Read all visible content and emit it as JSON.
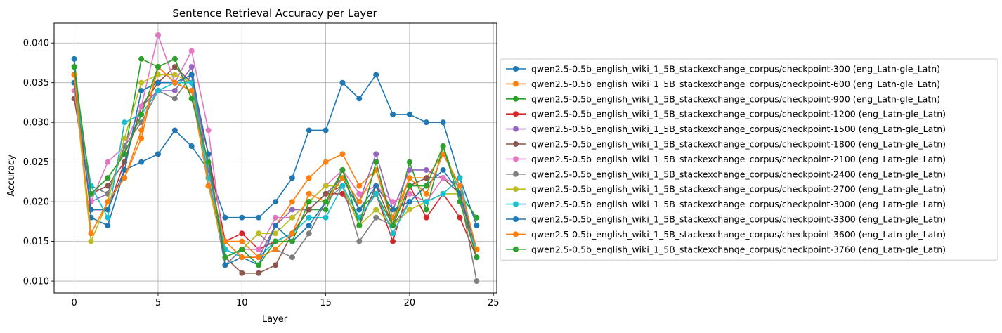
{
  "chart_data": {
    "type": "line",
    "title": "Sentence Retrieval Accuracy per Layer",
    "xlabel": "Layer",
    "ylabel": "Accuracy",
    "xlim": [
      -1.2,
      25.2
    ],
    "ylim": [
      0.0085,
      0.0425
    ],
    "xticks": [
      0,
      5,
      10,
      15,
      20,
      25
    ],
    "yticks": [
      0.01,
      0.015,
      0.02,
      0.025,
      0.03,
      0.035,
      0.04
    ],
    "xtick_labels": [
      "0",
      "5",
      "10",
      "15",
      "20",
      "25"
    ],
    "ytick_labels": [
      "0.010",
      "0.015",
      "0.020",
      "0.025",
      "0.030",
      "0.035",
      "0.040"
    ],
    "grid": true,
    "legend_position": "outside-right",
    "x": [
      0,
      1,
      2,
      3,
      4,
      5,
      6,
      7,
      8,
      9,
      10,
      11,
      12,
      13,
      14,
      15,
      16,
      17,
      18,
      19,
      20,
      21,
      22,
      23,
      24
    ],
    "series": [
      {
        "name": "qwen2.5-0.5b_english_wiki_1_5B_stackexchange_corpus/checkpoint-300 (eng_Latn-gle_Latn)",
        "color": "#1f77b4",
        "values": [
          0.038,
          0.018,
          0.017,
          0.024,
          0.025,
          0.026,
          0.029,
          0.027,
          0.024,
          0.018,
          0.018,
          0.018,
          0.02,
          0.023,
          0.029,
          0.029,
          0.035,
          0.033,
          0.036,
          0.031,
          0.031,
          0.03,
          0.03,
          0.023,
          0.017
        ]
      },
      {
        "name": "qwen2.5-0.5b_english_wiki_1_5B_stackexchange_corpus/checkpoint-600 (eng_Latn-gle_Latn)",
        "color": "#ff7f0e",
        "values": [
          0.036,
          0.016,
          0.02,
          0.023,
          0.028,
          0.037,
          0.035,
          0.034,
          0.022,
          0.015,
          0.015,
          0.013,
          0.017,
          0.02,
          0.023,
          0.025,
          0.026,
          0.022,
          0.024,
          0.018,
          0.023,
          0.023,
          0.026,
          0.022,
          0.014
        ]
      },
      {
        "name": "qwen2.5-0.5b_english_wiki_1_5B_stackexchange_corpus/checkpoint-900 (eng_Latn-gle_Latn)",
        "color": "#2ca02c",
        "values": [
          0.037,
          0.021,
          0.023,
          0.026,
          0.038,
          0.037,
          0.038,
          0.033,
          0.025,
          0.013,
          0.014,
          0.014,
          0.015,
          0.016,
          0.019,
          0.019,
          0.024,
          0.019,
          0.021,
          0.017,
          0.025,
          0.019,
          0.027,
          0.021,
          0.018
        ]
      },
      {
        "name": "qwen2.5-0.5b_english_wiki_1_5B_stackexchange_corpus/checkpoint-1200 (eng_Latn-gle_Latn)",
        "color": "#d62728",
        "values": [
          0.036,
          0.019,
          0.019,
          0.025,
          0.032,
          0.035,
          0.035,
          0.035,
          0.026,
          0.015,
          0.016,
          0.014,
          0.015,
          0.016,
          0.019,
          0.021,
          0.021,
          0.018,
          0.021,
          0.015,
          0.022,
          0.018,
          0.021,
          0.018,
          0.013
        ]
      },
      {
        "name": "qwen2.5-0.5b_english_wiki_1_5B_stackexchange_corpus/checkpoint-1500 (eng_Latn-gle_Latn)",
        "color": "#9467bd",
        "values": [
          0.033,
          0.02,
          0.021,
          0.027,
          0.032,
          0.034,
          0.034,
          0.037,
          0.024,
          0.014,
          0.013,
          0.013,
          0.017,
          0.019,
          0.019,
          0.021,
          0.023,
          0.02,
          0.026,
          0.019,
          0.024,
          0.024,
          0.023,
          0.021,
          0.013
        ]
      },
      {
        "name": "qwen2.5-0.5b_english_wiki_1_5B_stackexchange_corpus/checkpoint-1800 (eng_Latn-gle_Latn)",
        "color": "#8c564b",
        "values": [
          0.033,
          0.021,
          0.022,
          0.025,
          0.032,
          0.035,
          0.037,
          0.035,
          0.023,
          0.013,
          0.011,
          0.011,
          0.012,
          0.016,
          0.019,
          0.021,
          0.022,
          0.017,
          0.022,
          0.017,
          0.022,
          0.023,
          0.023,
          0.021,
          0.013
        ]
      },
      {
        "name": "qwen2.5-0.5b_english_wiki_1_5B_stackexchange_corpus/checkpoint-2100 (eng_Latn-gle_Latn)",
        "color": "#e377c2",
        "values": [
          0.034,
          0.02,
          0.025,
          0.027,
          0.032,
          0.041,
          0.035,
          0.039,
          0.029,
          0.013,
          0.014,
          0.014,
          0.018,
          0.018,
          0.02,
          0.022,
          0.024,
          0.021,
          0.022,
          0.02,
          0.021,
          0.02,
          0.023,
          0.022,
          0.013
        ]
      },
      {
        "name": "qwen2.5-0.5b_english_wiki_1_5B_stackexchange_corpus/checkpoint-2400 (eng_Latn-gle_Latn)",
        "color": "#7f7f7f",
        "values": [
          0.035,
          0.022,
          0.021,
          0.027,
          0.03,
          0.034,
          0.033,
          0.036,
          0.023,
          0.012,
          0.014,
          0.016,
          0.014,
          0.013,
          0.016,
          0.02,
          0.022,
          0.015,
          0.018,
          0.017,
          0.02,
          0.02,
          0.021,
          0.021,
          0.01
        ]
      },
      {
        "name": "qwen2.5-0.5b_english_wiki_1_5B_stackexchange_corpus/checkpoint-2700 (eng_Latn-gle_Latn)",
        "color": "#bcbd22",
        "values": [
          0.035,
          0.015,
          0.02,
          0.028,
          0.035,
          0.036,
          0.036,
          0.035,
          0.022,
          0.013,
          0.014,
          0.016,
          0.016,
          0.018,
          0.02,
          0.022,
          0.022,
          0.017,
          0.019,
          0.017,
          0.019,
          0.02,
          0.021,
          0.021,
          0.014
        ]
      },
      {
        "name": "qwen2.5-0.5b_english_wiki_1_5B_stackexchange_corpus/checkpoint-3000 (eng_Latn-gle_Latn)",
        "color": "#17becf",
        "values": [
          0.035,
          0.022,
          0.018,
          0.03,
          0.031,
          0.034,
          0.035,
          0.035,
          0.023,
          0.014,
          0.013,
          0.013,
          0.015,
          0.016,
          0.018,
          0.018,
          0.022,
          0.018,
          0.021,
          0.016,
          0.02,
          0.02,
          0.021,
          0.023,
          0.013
        ]
      },
      {
        "name": "qwen2.5-0.5b_english_wiki_1_5B_stackexchange_corpus/checkpoint-3300 (eng_Latn-gle_Latn)",
        "color": "#1f77b4",
        "values": [
          0.035,
          0.019,
          0.019,
          0.024,
          0.034,
          0.035,
          0.035,
          0.036,
          0.026,
          0.012,
          0.013,
          0.012,
          0.017,
          0.015,
          0.017,
          0.02,
          0.023,
          0.019,
          0.022,
          0.019,
          0.02,
          0.022,
          0.024,
          0.021,
          0.014
        ]
      },
      {
        "name": "qwen2.5-0.5b_english_wiki_1_5B_stackexchange_corpus/checkpoint-3600 (eng_Latn-gle_Latn)",
        "color": "#ff7f0e",
        "values": [
          0.036,
          0.016,
          0.02,
          0.023,
          0.029,
          0.037,
          0.035,
          0.034,
          0.022,
          0.015,
          0.013,
          0.013,
          0.014,
          0.016,
          0.021,
          0.02,
          0.023,
          0.02,
          0.024,
          0.017,
          0.023,
          0.021,
          0.026,
          0.022,
          0.014
        ]
      },
      {
        "name": "qwen2.5-0.5b_english_wiki_1_5B_stackexchange_corpus/checkpoint-3760 (eng_Latn-gle_Latn)",
        "color": "#2ca02c",
        "values": [
          0.037,
          0.021,
          0.023,
          0.026,
          0.031,
          0.037,
          0.038,
          0.033,
          0.025,
          0.013,
          0.014,
          0.012,
          0.015,
          0.015,
          0.02,
          0.02,
          0.024,
          0.017,
          0.025,
          0.017,
          0.022,
          0.022,
          0.027,
          0.02,
          0.013
        ]
      }
    ]
  }
}
